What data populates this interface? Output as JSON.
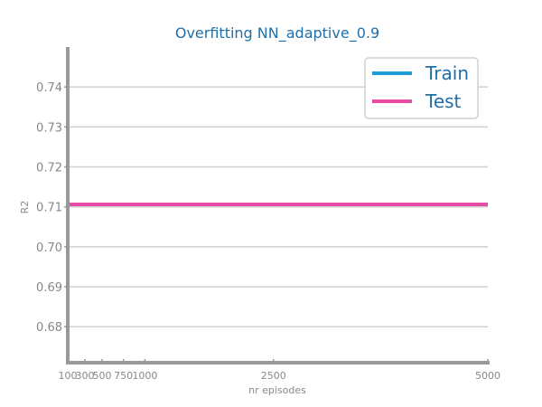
{
  "chart_data": {
    "type": "line",
    "title": "Overfitting NN_adaptive_0.9",
    "xlabel": "nr episodes",
    "ylabel": "R2",
    "x": [
      100,
      300,
      500,
      750,
      1000,
      2500,
      5000
    ],
    "x_tick_labels": [
      "100",
      "300",
      "500",
      "750",
      "1000",
      "2500",
      "5000"
    ],
    "xlim": [
      100,
      5000
    ],
    "ylim": [
      0.671,
      0.75
    ],
    "y_ticks": [
      0.68,
      0.69,
      0.7,
      0.71,
      0.72,
      0.73,
      0.74
    ],
    "y_tick_labels": [
      "0.68",
      "0.69",
      "0.70",
      "0.71",
      "0.72",
      "0.73",
      "0.74"
    ],
    "grid": "horizontal",
    "legend_position": "top-right",
    "series": [
      {
        "name": "Train",
        "color": "#1f9bd6",
        "values": [
          0.7106,
          0.7106,
          0.7106,
          0.7106,
          0.7106,
          0.7106,
          0.7106
        ]
      },
      {
        "name": "Test",
        "color": "#e64ca3",
        "values": [
          0.7106,
          0.7106,
          0.7106,
          0.7106,
          0.7106,
          0.7106,
          0.7106
        ]
      }
    ]
  }
}
